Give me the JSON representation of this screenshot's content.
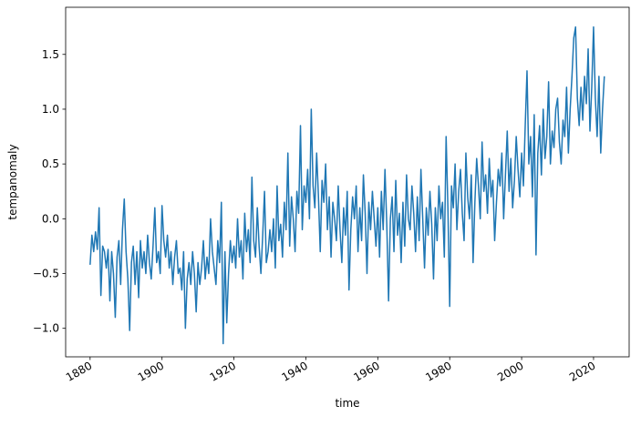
{
  "chart_data": {
    "type": "line",
    "xlabel": "time",
    "ylabel": "tempanomaly",
    "x": [
      1880,
      1880.5,
      1881,
      1881.5,
      1882,
      1882.5,
      1883,
      1883.5,
      1884,
      1884.5,
      1885,
      1885.5,
      1886,
      1886.5,
      1887,
      1887.5,
      1888,
      1888.5,
      1889,
      1889.5,
      1890,
      1890.5,
      1891,
      1891.5,
      1892,
      1892.5,
      1893,
      1893.5,
      1894,
      1894.5,
      1895,
      1895.5,
      1896,
      1896.5,
      1897,
      1897.5,
      1898,
      1898.5,
      1899,
      1899.5,
      1900,
      1900.5,
      1901,
      1901.5,
      1902,
      1902.5,
      1903,
      1903.5,
      1904,
      1904.5,
      1905,
      1905.5,
      1906,
      1906.5,
      1907,
      1907.5,
      1908,
      1908.5,
      1909,
      1909.5,
      1910,
      1910.5,
      1911,
      1911.5,
      1912,
      1912.5,
      1913,
      1913.5,
      1914,
      1914.5,
      1915,
      1915.5,
      1916,
      1916.5,
      1917,
      1917.5,
      1918,
      1918.5,
      1919,
      1919.5,
      1920,
      1920.5,
      1921,
      1921.5,
      1922,
      1922.5,
      1923,
      1923.5,
      1924,
      1924.5,
      1925,
      1925.5,
      1926,
      1926.5,
      1927,
      1927.5,
      1928,
      1928.5,
      1929,
      1929.5,
      1930,
      1930.5,
      1931,
      1931.5,
      1932,
      1932.5,
      1933,
      1933.5,
      1934,
      1934.5,
      1935,
      1935.5,
      1936,
      1936.5,
      1937,
      1937.5,
      1938,
      1938.5,
      1939,
      1939.5,
      1940,
      1940.5,
      1941,
      1941.5,
      1942,
      1942.5,
      1943,
      1943.5,
      1944,
      1944.5,
      1945,
      1945.5,
      1946,
      1946.5,
      1947,
      1947.5,
      1948,
      1948.5,
      1949,
      1949.5,
      1950,
      1950.5,
      1951,
      1951.5,
      1952,
      1952.5,
      1953,
      1953.5,
      1954,
      1954.5,
      1955,
      1955.5,
      1956,
      1956.5,
      1957,
      1957.5,
      1958,
      1958.5,
      1959,
      1959.5,
      1960,
      1960.5,
      1961,
      1961.5,
      1962,
      1962.5,
      1963,
      1963.5,
      1964,
      1964.5,
      1965,
      1965.5,
      1966,
      1966.5,
      1967,
      1967.5,
      1968,
      1968.5,
      1969,
      1969.5,
      1970,
      1970.5,
      1971,
      1971.5,
      1972,
      1972.5,
      1973,
      1973.5,
      1974,
      1974.5,
      1975,
      1975.5,
      1976,
      1976.5,
      1977,
      1977.5,
      1978,
      1978.5,
      1979,
      1979.5,
      1980,
      1980.5,
      1981,
      1981.5,
      1982,
      1982.5,
      1983,
      1983.5,
      1984,
      1984.5,
      1985,
      1985.5,
      1986,
      1986.5,
      1987,
      1987.5,
      1988,
      1988.5,
      1989,
      1989.5,
      1990,
      1990.5,
      1991,
      1991.5,
      1992,
      1992.5,
      1993,
      1993.5,
      1994,
      1994.5,
      1995,
      1995.5,
      1996,
      1996.5,
      1997,
      1997.5,
      1998,
      1998.5,
      1999,
      1999.5,
      2000,
      2000.5,
      2001,
      2001.5,
      2002,
      2002.5,
      2003,
      2003.5,
      2004,
      2004.5,
      2005,
      2005.5,
      2006,
      2006.5,
      2007,
      2007.5,
      2008,
      2008.5,
      2009,
      2009.5,
      2010,
      2010.5,
      2011,
      2011.5,
      2012,
      2012.5,
      2013,
      2013.5,
      2014,
      2014.5,
      2015,
      2015.5,
      2016,
      2016.5,
      2017,
      2017.5,
      2018,
      2018.5,
      2019,
      2019.5,
      2020,
      2020.5,
      2021,
      2021.5,
      2022,
      2022.5,
      2023
    ],
    "series": [
      {
        "color": "#1f77b4",
        "values": [
          -0.42,
          -0.15,
          -0.3,
          -0.12,
          -0.28,
          0.1,
          -0.7,
          -0.25,
          -0.3,
          -0.45,
          -0.28,
          -0.75,
          -0.3,
          -0.5,
          -0.9,
          -0.35,
          -0.2,
          -0.6,
          -0.1,
          0.18,
          -0.3,
          -0.55,
          -1.02,
          -0.4,
          -0.25,
          -0.6,
          -0.3,
          -0.72,
          -0.2,
          -0.45,
          -0.3,
          -0.5,
          -0.15,
          -0.4,
          -0.55,
          -0.25,
          0.1,
          -0.4,
          -0.3,
          -0.5,
          0.12,
          -0.2,
          -0.35,
          -0.15,
          -0.45,
          -0.3,
          -0.6,
          -0.35,
          -0.2,
          -0.5,
          -0.45,
          -0.65,
          -0.3,
          -1.0,
          -0.55,
          -0.4,
          -0.6,
          -0.3,
          -0.5,
          -0.85,
          -0.4,
          -0.6,
          -0.45,
          -0.2,
          -0.55,
          -0.35,
          -0.5,
          0.0,
          -0.3,
          -0.45,
          -0.6,
          -0.2,
          -0.4,
          0.15,
          -1.14,
          -0.3,
          -0.95,
          -0.5,
          -0.2,
          -0.4,
          -0.25,
          -0.45,
          0.0,
          -0.35,
          -0.2,
          -0.55,
          0.05,
          -0.3,
          -0.1,
          -0.4,
          0.38,
          -0.2,
          -0.35,
          0.1,
          -0.25,
          -0.5,
          -0.15,
          0.25,
          -0.4,
          -0.3,
          -0.1,
          -0.3,
          0.0,
          -0.45,
          0.3,
          -0.2,
          -0.05,
          -0.35,
          0.15,
          -0.1,
          0.6,
          -0.25,
          0.2,
          0.0,
          -0.3,
          0.25,
          0.05,
          0.85,
          -0.1,
          0.3,
          0.15,
          0.45,
          0.0,
          1.0,
          0.3,
          0.1,
          0.6,
          0.2,
          -0.3,
          0.35,
          0.15,
          0.5,
          -0.1,
          0.2,
          -0.35,
          0.15,
          0.0,
          -0.2,
          0.3,
          -0.1,
          -0.4,
          0.1,
          -0.15,
          0.25,
          -0.65,
          -0.1,
          0.2,
          0.0,
          0.3,
          -0.3,
          0.1,
          -0.2,
          0.4,
          0.05,
          -0.5,
          0.15,
          -0.1,
          0.25,
          0.0,
          -0.25,
          0.1,
          -0.35,
          0.25,
          -0.1,
          0.45,
          -0.05,
          -0.75,
          0.0,
          0.2,
          -0.3,
          0.35,
          -0.15,
          0.05,
          -0.4,
          0.15,
          -0.25,
          0.4,
          0.0,
          -0.1,
          0.3,
          0.05,
          -0.3,
          0.2,
          -0.2,
          0.45,
          0.0,
          -0.45,
          0.1,
          -0.15,
          0.25,
          -0.05,
          -0.55,
          0.1,
          -0.2,
          0.3,
          0.0,
          0.15,
          -0.35,
          0.75,
          0.1,
          -0.8,
          0.3,
          0.1,
          0.5,
          -0.1,
          0.25,
          0.45,
          0.05,
          -0.2,
          0.6,
          0.2,
          0.0,
          0.4,
          -0.4,
          0.15,
          0.55,
          0.3,
          0.0,
          0.7,
          0.25,
          0.4,
          0.05,
          0.55,
          0.2,
          0.35,
          -0.2,
          0.15,
          0.45,
          0.3,
          0.6,
          0.0,
          0.4,
          0.8,
          0.25,
          0.55,
          0.1,
          0.35,
          0.75,
          0.45,
          0.2,
          0.6,
          0.3,
          0.85,
          1.35,
          0.5,
          0.75,
          0.2,
          0.95,
          -0.33,
          0.6,
          0.85,
          0.4,
          1.0,
          0.55,
          0.75,
          1.25,
          0.5,
          0.8,
          0.65,
          1.0,
          1.1,
          0.7,
          0.5,
          0.9,
          0.75,
          1.2,
          0.6,
          1.0,
          1.3,
          1.65,
          1.75,
          1.1,
          0.85,
          1.2,
          0.9,
          1.3,
          1.05,
          1.55,
          0.8,
          1.2,
          1.75,
          1.1,
          0.75,
          1.3,
          0.6,
          1.0,
          1.3
        ]
      }
    ],
    "xlim": [
      1873.2,
      2029.9
    ],
    "xticks": [
      1880,
      1900,
      1920,
      1940,
      1960,
      1980,
      2000,
      2020
    ],
    "ylim": [
      -1.26,
      1.93
    ],
    "yticks": [
      {
        "value": -1,
        "label": "−1.0"
      },
      {
        "value": -0.5,
        "label": "−0.5"
      },
      {
        "value": 0,
        "label": "0.0"
      },
      0.5,
      {
        "value": 1,
        "label": "1.0"
      },
      1.5
    ],
    "grid": false
  }
}
